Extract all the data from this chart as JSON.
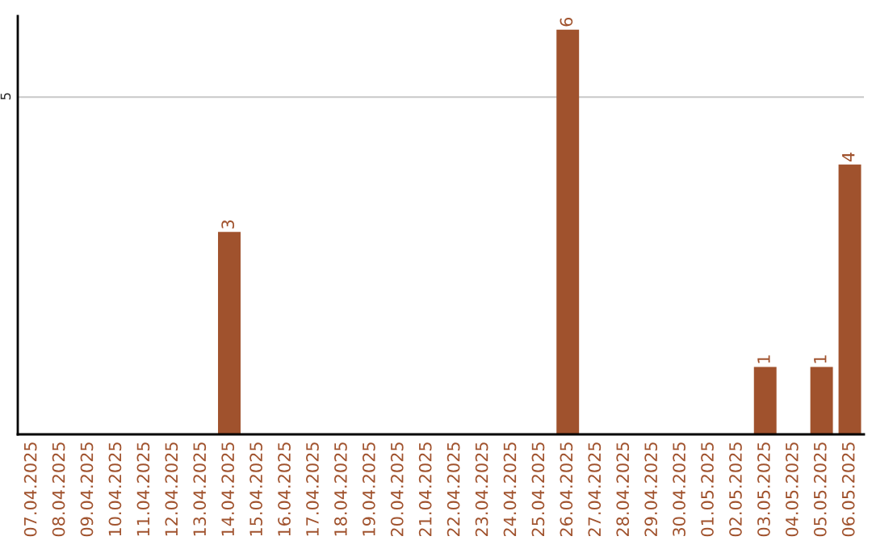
{
  "chart_data": {
    "type": "bar",
    "categories": [
      "07.04.2025",
      "08.04.2025",
      "09.04.2025",
      "10.04.2025",
      "11.04.2025",
      "12.04.2025",
      "13.04.2025",
      "14.04.2025",
      "15.04.2025",
      "16.04.2025",
      "17.04.2025",
      "18.04.2025",
      "19.04.2025",
      "20.04.2025",
      "21.04.2025",
      "22.04.2025",
      "23.04.2025",
      "24.04.2025",
      "25.04.2025",
      "26.04.2025",
      "27.04.2025",
      "28.04.2025",
      "29.04.2025",
      "30.04.2025",
      "01.05.2025",
      "02.05.2025",
      "03.05.2025",
      "04.05.2025",
      "05.05.2025",
      "06.05.2025"
    ],
    "values": [
      0,
      0,
      0,
      0,
      0,
      0,
      0,
      3,
      0,
      0,
      0,
      0,
      0,
      0,
      0,
      0,
      0,
      0,
      0,
      6,
      0,
      0,
      0,
      0,
      0,
      0,
      1,
      0,
      1,
      4
    ],
    "value_labels": [
      null,
      null,
      null,
      null,
      null,
      null,
      null,
      "3",
      null,
      null,
      null,
      null,
      null,
      null,
      null,
      null,
      null,
      null,
      null,
      "6",
      null,
      null,
      null,
      null,
      null,
      null,
      "1",
      null,
      "1",
      "4"
    ],
    "color": "#a0522d",
    "ylim": [
      0,
      6.2
    ],
    "yticks": [
      5
    ],
    "grid": "y",
    "legend": false
  }
}
